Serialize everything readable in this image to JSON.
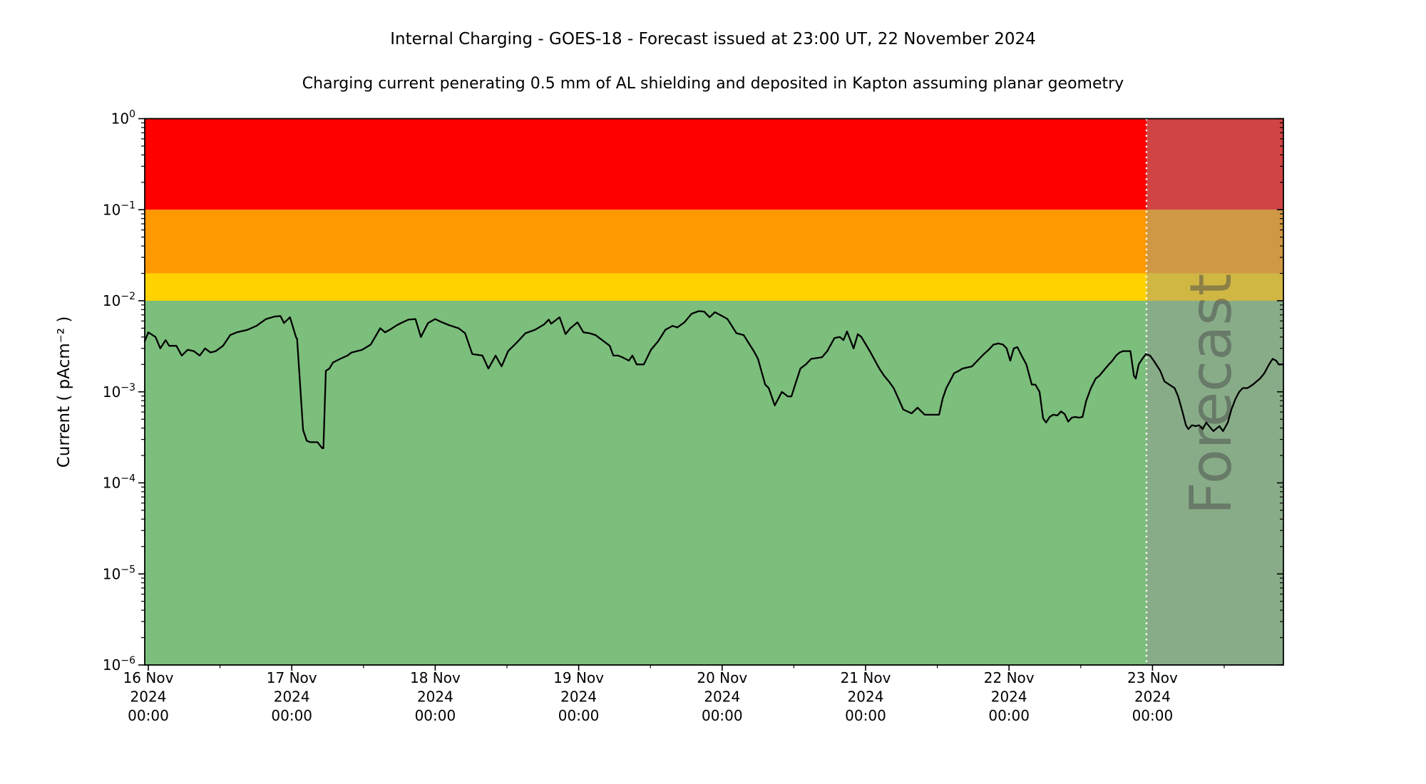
{
  "title": "Internal Charging - GOES-18 - Forecast issued at 23:00 UT, 22 November 2024",
  "subtitle": "Charging current penerating 0.5 mm of AL shielding and deposited in Kapton assuming planar geometry",
  "chart_data": {
    "type": "line",
    "title": "Internal Charging - GOES-18 - Forecast issued at 23:00 UT, 22 November 2024",
    "subtitle": "Charging current penerating 0.5 mm of AL shielding and deposited in Kapton assuming planar geometry",
    "xlabel": "",
    "ylabel": "Current ( pAcm⁻² )",
    "yscale": "log",
    "ylim": [
      1e-06,
      1
    ],
    "x_unit": "hours since 16 Nov 2024 00:00 UT",
    "xlim": [
      -0.6,
      189.9
    ],
    "grid": false,
    "legend": "none",
    "y_ticks": [
      {
        "value": 1,
        "base": "10",
        "exp": "0"
      },
      {
        "value": 0.1,
        "base": "10",
        "exp": "−1"
      },
      {
        "value": 0.01,
        "base": "10",
        "exp": "−2"
      },
      {
        "value": 0.001,
        "base": "10",
        "exp": "−3"
      },
      {
        "value": 0.0001,
        "base": "10",
        "exp": "−4"
      },
      {
        "value": 1e-05,
        "base": "10",
        "exp": "−5"
      },
      {
        "value": 1e-06,
        "base": "10",
        "exp": "−6"
      }
    ],
    "x_ticks": [
      {
        "hours": 0,
        "lines": [
          "16 Nov",
          "2024",
          "00:00"
        ]
      },
      {
        "hours": 24,
        "lines": [
          "17 Nov",
          "2024",
          "00:00"
        ]
      },
      {
        "hours": 48,
        "lines": [
          "18 Nov",
          "2024",
          "00:00"
        ]
      },
      {
        "hours": 72,
        "lines": [
          "19 Nov",
          "2024",
          "00:00"
        ]
      },
      {
        "hours": 96,
        "lines": [
          "20 Nov",
          "2024",
          "00:00"
        ]
      },
      {
        "hours": 120,
        "lines": [
          "21 Nov",
          "2024",
          "00:00"
        ]
      },
      {
        "hours": 144,
        "lines": [
          "22 Nov",
          "2024",
          "00:00"
        ]
      },
      {
        "hours": 168,
        "lines": [
          "23 Nov",
          "2024",
          "00:00"
        ]
      }
    ],
    "x_minor_tick_hours": [
      12,
      36,
      60,
      84,
      108,
      132,
      156,
      180
    ],
    "bands": [
      {
        "name": "red",
        "from": 0.1,
        "to": 1,
        "color": "#ff0000"
      },
      {
        "name": "orange",
        "from": 0.02,
        "to": 0.1,
        "color": "#ff9900"
      },
      {
        "name": "yellow",
        "from": 0.01,
        "to": 0.02,
        "color": "#ffd200"
      },
      {
        "name": "green",
        "from": 1e-06,
        "to": 0.01,
        "color": "#7cbe7c"
      }
    ],
    "forecast": {
      "label": "Forecast",
      "start_hour": 167,
      "start_time": "23:00 UT 22 November 2024",
      "boundary_line_color": "#ffffff",
      "overlay_color": "rgba(150,150,150,0.45)",
      "label_color": "#4a4a4a"
    },
    "series": [
      {
        "name": "charging current",
        "color": "#000000",
        "points": [
          [
            -0.6,
            0.0036
          ],
          [
            0,
            0.0045
          ],
          [
            1.2,
            0.004
          ],
          [
            2,
            0.003
          ],
          [
            2.9,
            0.0037
          ],
          [
            3.5,
            0.0032
          ],
          [
            4.7,
            0.0032
          ],
          [
            5.6,
            0.0025
          ],
          [
            6.6,
            0.0029
          ],
          [
            7.6,
            0.0028
          ],
          [
            8.6,
            0.0025
          ],
          [
            9.5,
            0.003
          ],
          [
            10.4,
            0.0027
          ],
          [
            11.3,
            0.0028
          ],
          [
            12.5,
            0.0032
          ],
          [
            13.7,
            0.0042
          ],
          [
            14.8,
            0.0045
          ],
          [
            16.6,
            0.0048
          ],
          [
            18.1,
            0.0053
          ],
          [
            19.7,
            0.0063
          ],
          [
            21.1,
            0.0067
          ],
          [
            22.1,
            0.0068
          ],
          [
            22.7,
            0.0057
          ],
          [
            23.7,
            0.0066
          ],
          [
            24.7,
            0.004
          ],
          [
            24.9,
            0.0038
          ],
          [
            25.9,
            0.00038
          ],
          [
            26.5,
            0.00029
          ],
          [
            27.1,
            0.00028
          ],
          [
            28.3,
            0.00028
          ],
          [
            29.1,
            0.00024
          ],
          [
            29.3,
            0.00024
          ],
          [
            29.7,
            0.0017
          ],
          [
            30.3,
            0.0018
          ],
          [
            30.9,
            0.0021
          ],
          [
            31.5,
            0.0022
          ],
          [
            32.1,
            0.0023
          ],
          [
            33.3,
            0.0025
          ],
          [
            34,
            0.0027
          ],
          [
            35.8,
            0.0029
          ],
          [
            37.2,
            0.0033
          ],
          [
            38.8,
            0.005
          ],
          [
            39.6,
            0.0045
          ],
          [
            40.4,
            0.0048
          ],
          [
            41.6,
            0.0054
          ],
          [
            42.3,
            0.0057
          ],
          [
            43.5,
            0.0062
          ],
          [
            44.7,
            0.0063
          ],
          [
            45.6,
            0.004
          ],
          [
            46.8,
            0.0057
          ],
          [
            48,
            0.0063
          ],
          [
            48.9,
            0.0059
          ],
          [
            50.3,
            0.0054
          ],
          [
            51.9,
            0.005
          ],
          [
            53,
            0.0044
          ],
          [
            54.2,
            0.0026
          ],
          [
            55.9,
            0.0025
          ],
          [
            56.9,
            0.0018
          ],
          [
            58.1,
            0.0025
          ],
          [
            59.1,
            0.0019
          ],
          [
            60.2,
            0.0028
          ],
          [
            61.7,
            0.0035
          ],
          [
            63.1,
            0.0044
          ],
          [
            64.7,
            0.0048
          ],
          [
            66.2,
            0.0055
          ],
          [
            67,
            0.0062
          ],
          [
            67.4,
            0.0056
          ],
          [
            68.8,
            0.0066
          ],
          [
            69.8,
            0.0043
          ],
          [
            70.6,
            0.005
          ],
          [
            71.8,
            0.0058
          ],
          [
            72.8,
            0.0045
          ],
          [
            73.8,
            0.0044
          ],
          [
            74.8,
            0.0042
          ],
          [
            75.7,
            0.0038
          ],
          [
            77.2,
            0.0032
          ],
          [
            77.8,
            0.0025
          ],
          [
            78.6,
            0.0025
          ],
          [
            79.3,
            0.0024
          ],
          [
            80.4,
            0.0022
          ],
          [
            81,
            0.0025
          ],
          [
            81.7,
            0.002
          ],
          [
            82.9,
            0.002
          ],
          [
            84.1,
            0.0029
          ],
          [
            85.3,
            0.0036
          ],
          [
            86.5,
            0.0048
          ],
          [
            87.7,
            0.0053
          ],
          [
            88.5,
            0.0051
          ],
          [
            89.7,
            0.0058
          ],
          [
            90.9,
            0.0072
          ],
          [
            92.1,
            0.0077
          ],
          [
            93,
            0.0076
          ],
          [
            93.9,
            0.0066
          ],
          [
            94.8,
            0.0075
          ],
          [
            96,
            0.0068
          ],
          [
            96.9,
            0.0063
          ],
          [
            98.4,
            0.0044
          ],
          [
            99.6,
            0.0042
          ],
          [
            101.3,
            0.0028
          ],
          [
            102,
            0.0023
          ],
          [
            103.2,
            0.0012
          ],
          [
            103.8,
            0.0011
          ],
          [
            104.8,
            0.00071
          ],
          [
            106,
            0.001
          ],
          [
            107,
            0.00089
          ],
          [
            107.6,
            0.00089
          ],
          [
            108.4,
            0.0013
          ],
          [
            109.1,
            0.0018
          ],
          [
            110,
            0.002
          ],
          [
            110.9,
            0.0023
          ],
          [
            112.7,
            0.0024
          ],
          [
            113.6,
            0.0028
          ],
          [
            114.8,
            0.0039
          ],
          [
            115.7,
            0.004
          ],
          [
            116.3,
            0.0037
          ],
          [
            116.9,
            0.0046
          ],
          [
            118,
            0.003
          ],
          [
            118.7,
            0.0043
          ],
          [
            119.3,
            0.004
          ],
          [
            120.7,
            0.0028
          ],
          [
            122.3,
            0.0018
          ],
          [
            123.1,
            0.0015
          ],
          [
            123.9,
            0.0013
          ],
          [
            124.7,
            0.0011
          ],
          [
            125.5,
            0.00084
          ],
          [
            126.3,
            0.00064
          ],
          [
            127.7,
            0.00058
          ],
          [
            128.7,
            0.00067
          ],
          [
            129.9,
            0.00056
          ],
          [
            131.7,
            0.00056
          ],
          [
            132.3,
            0.00056
          ],
          [
            132.9,
            0.00084
          ],
          [
            133.5,
            0.0011
          ],
          [
            134.1,
            0.0013
          ],
          [
            134.8,
            0.0016
          ],
          [
            135.6,
            0.0017
          ],
          [
            136.2,
            0.0018
          ],
          [
            137.8,
            0.0019
          ],
          [
            139,
            0.0023
          ],
          [
            139.8,
            0.0026
          ],
          [
            140.6,
            0.0029
          ],
          [
            141.4,
            0.0033
          ],
          [
            142.2,
            0.0034
          ],
          [
            143,
            0.0033
          ],
          [
            143.6,
            0.003
          ],
          [
            144.2,
            0.0022
          ],
          [
            144.8,
            0.003
          ],
          [
            145.4,
            0.0031
          ],
          [
            146.1,
            0.0025
          ],
          [
            146.9,
            0.002
          ],
          [
            147.8,
            0.0012
          ],
          [
            148.4,
            0.0012
          ],
          [
            149.1,
            0.001
          ],
          [
            149.7,
            0.00051
          ],
          [
            150.2,
            0.00046
          ],
          [
            150.8,
            0.00053
          ],
          [
            151.4,
            0.00056
          ],
          [
            152.1,
            0.00055
          ],
          [
            152.7,
            0.00061
          ],
          [
            153.3,
            0.00057
          ],
          [
            153.9,
            0.00047
          ],
          [
            154.5,
            0.00052
          ],
          [
            155.1,
            0.00053
          ],
          [
            155.7,
            0.00052
          ],
          [
            156.3,
            0.00053
          ],
          [
            156.9,
            0.00079
          ],
          [
            157.7,
            0.0011
          ],
          [
            158.5,
            0.0014
          ],
          [
            159.1,
            0.0015
          ],
          [
            160.1,
            0.0018
          ],
          [
            160.7,
            0.002
          ],
          [
            161.3,
            0.0022
          ],
          [
            161.9,
            0.0025
          ],
          [
            162.5,
            0.0027
          ],
          [
            163.1,
            0.0028
          ],
          [
            163.7,
            0.0028
          ],
          [
            164.3,
            0.0028
          ],
          [
            164.9,
            0.0015
          ],
          [
            165.2,
            0.0014
          ],
          [
            165.7,
            0.002
          ],
          [
            166.3,
            0.0023
          ],
          [
            166.9,
            0.0026
          ],
          [
            167.6,
            0.0025
          ],
          [
            168.2,
            0.0022
          ],
          [
            169.3,
            0.0017
          ],
          [
            170,
            0.0013
          ],
          [
            170.8,
            0.0012
          ],
          [
            171.7,
            0.0011
          ],
          [
            172.3,
            0.00089
          ],
          [
            173,
            0.00061
          ],
          [
            173.6,
            0.00043
          ],
          [
            174,
            0.00039
          ],
          [
            174.6,
            0.00043
          ],
          [
            175.2,
            0.00042
          ],
          [
            175.8,
            0.00043
          ],
          [
            176.4,
            0.00039
          ],
          [
            177,
            0.00046
          ],
          [
            177.6,
            0.00041
          ],
          [
            178.2,
            0.00037
          ],
          [
            178.6,
            0.00039
          ],
          [
            179.2,
            0.00042
          ],
          [
            179.8,
            0.00037
          ],
          [
            180.6,
            0.00046
          ],
          [
            181.2,
            0.00064
          ],
          [
            181.9,
            0.00084
          ],
          [
            182.5,
            0.001
          ],
          [
            183.1,
            0.0011
          ],
          [
            183.9,
            0.0011
          ],
          [
            184.8,
            0.0012
          ],
          [
            185.4,
            0.0013
          ],
          [
            186,
            0.0014
          ],
          [
            186.7,
            0.0016
          ],
          [
            187.5,
            0.002
          ],
          [
            188.1,
            0.0023
          ],
          [
            188.7,
            0.0022
          ],
          [
            189.1,
            0.002
          ],
          [
            189.9,
            0.002
          ]
        ]
      }
    ]
  }
}
